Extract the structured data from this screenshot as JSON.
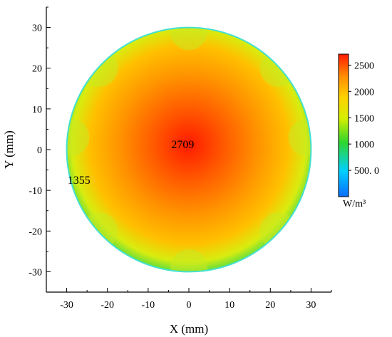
{
  "chart_data": {
    "type": "heatmap",
    "title": "",
    "xlabel": "X (mm)",
    "ylabel": "Y (mm)",
    "xlim": [
      -35,
      35
    ],
    "ylim": [
      -35,
      35
    ],
    "xticks": [
      -30,
      -20,
      -10,
      0,
      10,
      20,
      30
    ],
    "yticks": [
      -30,
      -20,
      -10,
      0,
      10,
      20,
      30
    ],
    "xtick_labels": [
      "-30",
      "-20",
      "-10",
      "0",
      "10",
      "20",
      "30"
    ],
    "ytick_labels": [
      "-30",
      "-20",
      "-10",
      "0",
      "10",
      "20",
      "30"
    ],
    "domain": "disk",
    "disk_radius_mm": 30,
    "colorbar": {
      "min": 0,
      "max": 2709,
      "ticks": [
        2500,
        2000,
        1500,
        1000,
        500
      ],
      "tick_labels": [
        "2500",
        "2000",
        "1500",
        "1000",
        "500. 0"
      ],
      "unit": "W/m³",
      "colors": [
        "#0a6cff",
        "#00d0ff",
        "#2ed62e",
        "#d6ee00",
        "#ffd000",
        "#ff8a00",
        "#ff1a00"
      ]
    },
    "annotations": [
      {
        "text": "2709",
        "x": -1.5,
        "y": 1.2
      },
      {
        "text": "1355",
        "x": -27,
        "y": -7.5
      }
    ],
    "grid": false
  }
}
